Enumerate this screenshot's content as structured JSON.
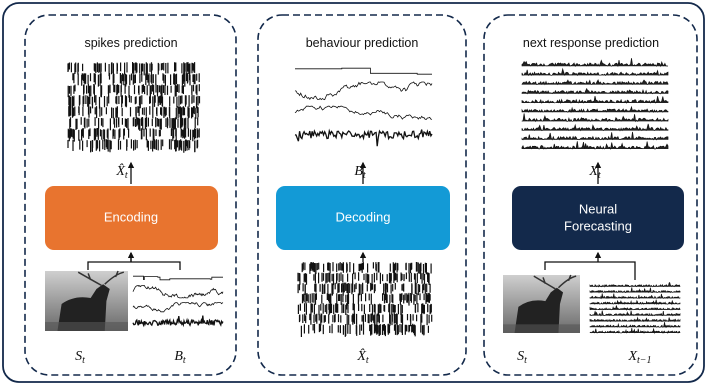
{
  "panels": [
    {
      "title": "spikes prediction",
      "model": {
        "label": [
          "Encoding"
        ]
      },
      "output": {
        "symbol": "X̂",
        "subscript": "t"
      },
      "inputs": [
        {
          "symbol": "S",
          "subscript": "t"
        },
        {
          "symbol": "B",
          "subscript": "t"
        }
      ]
    },
    {
      "title": "behaviour prediction",
      "model": {
        "label": [
          "Decoding"
        ]
      },
      "output": {
        "symbol": "B",
        "subscript": "t"
      },
      "inputs": [
        {
          "symbol": "X̂",
          "subscript": "t"
        }
      ]
    },
    {
      "title": "next response prediction",
      "model": {
        "label": [
          "Neural",
          "Forecasting"
        ]
      },
      "output": {
        "symbol": "X",
        "subscript": "t"
      },
      "inputs": [
        {
          "symbol": "S",
          "subscript": "t"
        },
        {
          "symbol": "X",
          "subscript": "t−1"
        }
      ]
    }
  ]
}
